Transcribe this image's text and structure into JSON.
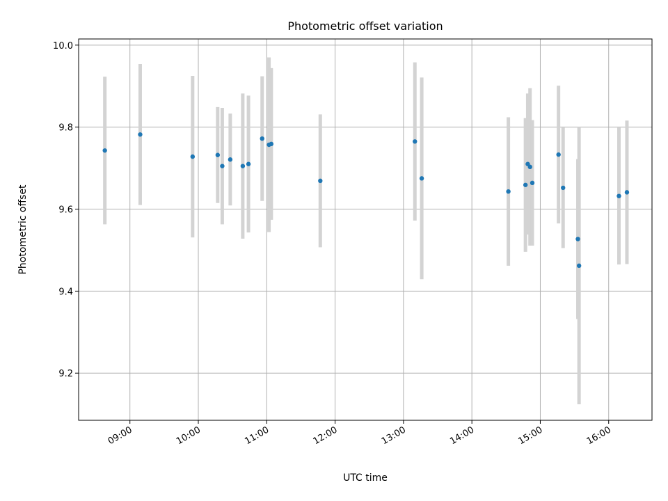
{
  "chart_data": {
    "type": "scatter",
    "title": "Photometric offset variation",
    "xlabel": "UTC time",
    "ylabel": "Photometric offset",
    "x_unit": "time of day (UTC)",
    "xlim": [
      "08:15",
      "16:38"
    ],
    "ylim": [
      9.085,
      10.015
    ],
    "x_ticks": [
      "09:00",
      "10:00",
      "11:00",
      "12:00",
      "13:00",
      "14:00",
      "15:00",
      "16:00"
    ],
    "y_ticks": [
      9.2,
      9.4,
      9.6,
      9.8,
      10.0
    ],
    "y_tick_labels": [
      "9.2",
      "9.4",
      "9.6",
      "9.8",
      "10.0"
    ],
    "grid": true,
    "legend": "none",
    "colors": {
      "points": "#1f77b4",
      "error_bars": "#d3d3d3",
      "grid": "#b0b0b0"
    },
    "points": [
      {
        "x": "08:38",
        "y": 9.743,
        "err": 0.18
      },
      {
        "x": "09:09",
        "y": 9.782,
        "err": 0.172
      },
      {
        "x": "09:55",
        "y": 9.728,
        "err": 0.197
      },
      {
        "x": "10:17",
        "y": 9.732,
        "err": 0.117
      },
      {
        "x": "10:21",
        "y": 9.705,
        "err": 0.142
      },
      {
        "x": "10:28",
        "y": 9.721,
        "err": 0.112
      },
      {
        "x": "10:39",
        "y": 9.705,
        "err": 0.177
      },
      {
        "x": "10:44",
        "y": 9.71,
        "err": 0.167
      },
      {
        "x": "10:56",
        "y": 9.772,
        "err": 0.152
      },
      {
        "x": "11:02",
        "y": 9.757,
        "err": 0.213
      },
      {
        "x": "11:04",
        "y": 9.759,
        "err": 0.185
      },
      {
        "x": "11:47",
        "y": 9.669,
        "err": 0.162
      },
      {
        "x": "13:10",
        "y": 9.765,
        "err": 0.193
      },
      {
        "x": "13:16",
        "y": 9.675,
        "err": 0.246
      },
      {
        "x": "14:32",
        "y": 9.643,
        "err": 0.181
      },
      {
        "x": "14:47",
        "y": 9.659,
        "err": 0.163
      },
      {
        "x": "14:49",
        "y": 9.71,
        "err": 0.172
      },
      {
        "x": "14:51",
        "y": 9.703,
        "err": 0.192
      },
      {
        "x": "14:53",
        "y": 9.664,
        "err": 0.153
      },
      {
        "x": "15:16",
        "y": 9.733,
        "err": 0.168
      },
      {
        "x": "15:20",
        "y": 9.652,
        "err": 0.147
      },
      {
        "x": "15:33",
        "y": 9.527,
        "err": 0.195
      },
      {
        "x": "15:34",
        "y": 9.462,
        "err": 0.338
      },
      {
        "x": "16:09",
        "y": 9.632,
        "err": 0.167
      },
      {
        "x": "16:16",
        "y": 9.641,
        "err": 0.175
      }
    ]
  }
}
